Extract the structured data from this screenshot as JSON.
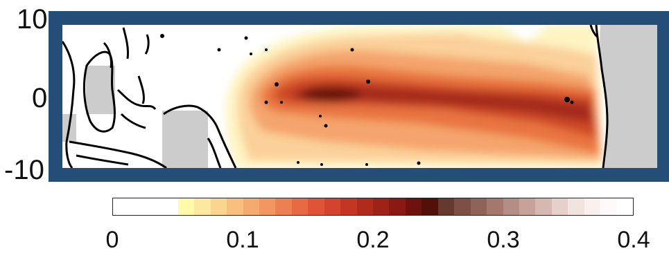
{
  "axis": {
    "y_ticks": [
      "10",
      "0",
      "-10"
    ]
  },
  "colorbar": {
    "ticks": [
      "0",
      "0.1",
      "0.2",
      "0.3",
      "0.4"
    ],
    "range": [
      0,
      0.4
    ],
    "colors": [
      "#ffffff",
      "#ffffff",
      "#ffffff",
      "#ffffff",
      "#fffba8",
      "#fde8a0",
      "#fbd48e",
      "#f8c07c",
      "#f5ab6d",
      "#f2975f",
      "#ec8050",
      "#e76a43",
      "#df5436",
      "#d4442c",
      "#c43624",
      "#b12b1d",
      "#9e2218",
      "#881913",
      "#6d120e",
      "#521009",
      "#66392f",
      "#7d4f45",
      "#8f6357",
      "#a4786c",
      "#b48d84",
      "#c6a29a",
      "#d6b8b1",
      "#e6d0cb",
      "#f1e4df",
      "#f8f1ee",
      "#fdfaf9",
      "#ffffff"
    ]
  },
  "colors": {
    "frame": "#244e78",
    "land": "#cccccc",
    "coast": "#000000"
  }
}
